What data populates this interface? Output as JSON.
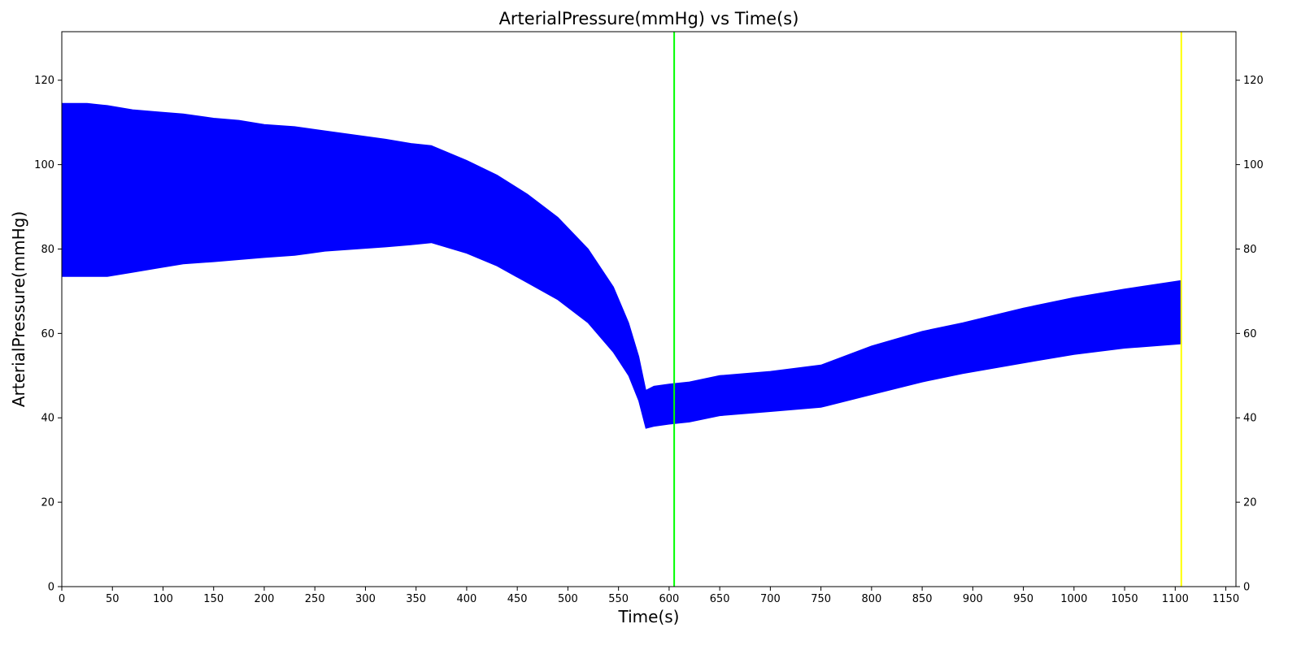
{
  "chart_data": {
    "type": "area",
    "title": "ArterialPressure(mmHg) vs Time(s)",
    "xlabel": "Time(s)",
    "ylabel": "ArterialPressure(mmHg)",
    "xlim": [
      0,
      1160
    ],
    "ylim": [
      0,
      131.5
    ],
    "x_ticks": [
      0,
      50,
      100,
      150,
      200,
      250,
      300,
      350,
      400,
      450,
      500,
      550,
      600,
      650,
      700,
      750,
      800,
      850,
      900,
      950,
      1000,
      1050,
      1100,
      1150
    ],
    "y_ticks": [
      0,
      20,
      40,
      60,
      80,
      100,
      120
    ],
    "y_ticks_right": true,
    "grid": false,
    "series": [
      {
        "color": "#0000ff",
        "representation": "min-max envelope of pulsatile waveform",
        "x": [
          0,
          25,
          45,
          70,
          95,
          120,
          150,
          175,
          200,
          230,
          260,
          290,
          320,
          345,
          365,
          400,
          430,
          460,
          490,
          520,
          545,
          560,
          570,
          577,
          585,
          600,
          620,
          650,
          700,
          750,
          800,
          850,
          890,
          950,
          1000,
          1050,
          1105
        ],
        "upper": [
          114.5,
          114.5,
          114.0,
          113.0,
          112.5,
          112.0,
          111.0,
          110.5,
          109.5,
          109.0,
          108.0,
          107.0,
          106.0,
          105.0,
          104.5,
          101.0,
          97.5,
          93.0,
          87.5,
          80.0,
          71.0,
          62.5,
          54.5,
          46.5,
          47.5,
          48.0,
          48.5,
          50.0,
          51.0,
          52.5,
          57.0,
          60.5,
          62.5,
          66.0,
          68.5,
          70.5,
          72.5
        ],
        "lower": [
          73.5,
          73.5,
          73.5,
          74.5,
          75.5,
          76.5,
          77.0,
          77.5,
          78.0,
          78.5,
          79.5,
          80.0,
          80.5,
          81.0,
          81.5,
          79.0,
          76.0,
          72.0,
          68.0,
          62.5,
          55.5,
          50.0,
          44.0,
          37.5,
          38.0,
          38.5,
          39.0,
          40.5,
          41.5,
          42.5,
          45.5,
          48.5,
          50.5,
          53.0,
          55.0,
          56.5,
          57.5
        ]
      }
    ],
    "vlines": [
      {
        "x": 605,
        "color": "#00ff00"
      },
      {
        "x": 1106,
        "color": "#ffff00"
      }
    ]
  }
}
